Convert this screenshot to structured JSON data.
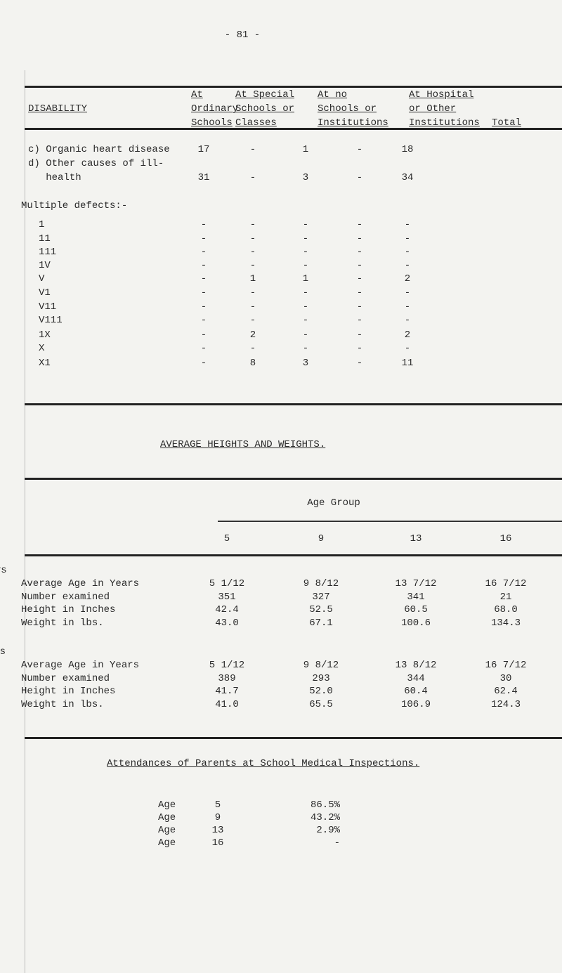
{
  "page_number": "- 81 -",
  "disability_table": {
    "headers": [
      [
        "DISABILITY"
      ],
      [
        "At",
        "Ordinary",
        "Schools"
      ],
      [
        "At Special",
        "Schools or",
        "Classes"
      ],
      [
        "At no",
        "Schools or",
        "Institutions"
      ],
      [
        "At Hospital",
        "or Other",
        "Institutions"
      ],
      [
        "Total"
      ]
    ],
    "rows": [
      {
        "label": [
          "c) Organic heart disease"
        ],
        "cells": [
          "17",
          "-",
          "1",
          "-",
          "18"
        ]
      },
      {
        "label": [
          "d) Other causes of ill-",
          "   health"
        ],
        "cells": [
          "31",
          "-",
          "3",
          "-",
          "34"
        ]
      },
      {
        "label": [
          "Multiple defects:-"
        ],
        "cells": []
      },
      {
        "label": [
          "1"
        ],
        "cells": [
          "-",
          "-",
          "-",
          "-",
          "-"
        ]
      },
      {
        "label": [
          "11"
        ],
        "cells": [
          "-",
          "-",
          "-",
          "-",
          "-"
        ]
      },
      {
        "label": [
          "111"
        ],
        "cells": [
          "-",
          "-",
          "-",
          "-",
          "-"
        ]
      },
      {
        "label": [
          "1V"
        ],
        "cells": [
          "-",
          "-",
          "-",
          "-",
          "-"
        ]
      },
      {
        "label": [
          "V"
        ],
        "cells": [
          "-",
          "1",
          "1",
          "-",
          "2"
        ]
      },
      {
        "label": [
          "V1"
        ],
        "cells": [
          "-",
          "-",
          "-",
          "-",
          "-"
        ]
      },
      {
        "label": [
          "V11"
        ],
        "cells": [
          "-",
          "-",
          "-",
          "-",
          "-"
        ]
      },
      {
        "label": [
          "V111"
        ],
        "cells": [
          "-",
          "-",
          "-",
          "-",
          "-"
        ]
      },
      {
        "label": [
          "1X"
        ],
        "cells": [
          "-",
          "2",
          "-",
          "-",
          "2"
        ]
      },
      {
        "label": [
          "X"
        ],
        "cells": [
          "-",
          "-",
          "-",
          "-",
          "-"
        ]
      },
      {
        "label": [
          "X1"
        ],
        "cells": [
          "-",
          "8",
          "3",
          "-",
          "11"
        ]
      }
    ]
  },
  "heights_weights": {
    "title": "AVERAGE HEIGHTS AND WEIGHTS.",
    "group_header": "Age Group",
    "ages": [
      "5",
      "9",
      "13",
      "16"
    ],
    "groups": [
      {
        "name": "Boys",
        "rows": [
          {
            "label": "Average Age in Years",
            "values": [
              "5 1/12",
              "9 8/12",
              "13 7/12",
              "16 7/12"
            ]
          },
          {
            "label": "Number examined",
            "values": [
              "351",
              "327",
              "341",
              "21"
            ]
          },
          {
            "label": "Height in Inches",
            "values": [
              "42.4",
              "52.5",
              "60.5",
              "68.0"
            ]
          },
          {
            "label": "Weight in lbs.",
            "values": [
              "43.0",
              "67.1",
              "100.6",
              "134.3"
            ]
          }
        ]
      },
      {
        "name": "Girls",
        "rows": [
          {
            "label": "Average Age in Years",
            "values": [
              "5 1/12",
              "9 8/12",
              "13 8/12",
              "16 7/12"
            ]
          },
          {
            "label": "Number examined",
            "values": [
              "389",
              "293",
              "344",
              "30"
            ]
          },
          {
            "label": "Height in Inches",
            "values": [
              "41.7",
              "52.0",
              "60.4",
              "62.4"
            ]
          },
          {
            "label": "Weight in lbs.",
            "values": [
              "41.0",
              "65.5",
              "106.9",
              "124.3"
            ]
          }
        ]
      }
    ]
  },
  "attendances": {
    "title": "Attendances of Parents at School Medical Inspections.",
    "rows": [
      {
        "label": "Age",
        "age": "5",
        "percent": "86.5%"
      },
      {
        "label": "Age",
        "age": "9",
        "percent": "43.2%"
      },
      {
        "label": "Age",
        "age": "13",
        "percent": "2.9%"
      },
      {
        "label": "Age",
        "age": "16",
        "percent": "-"
      }
    ]
  }
}
